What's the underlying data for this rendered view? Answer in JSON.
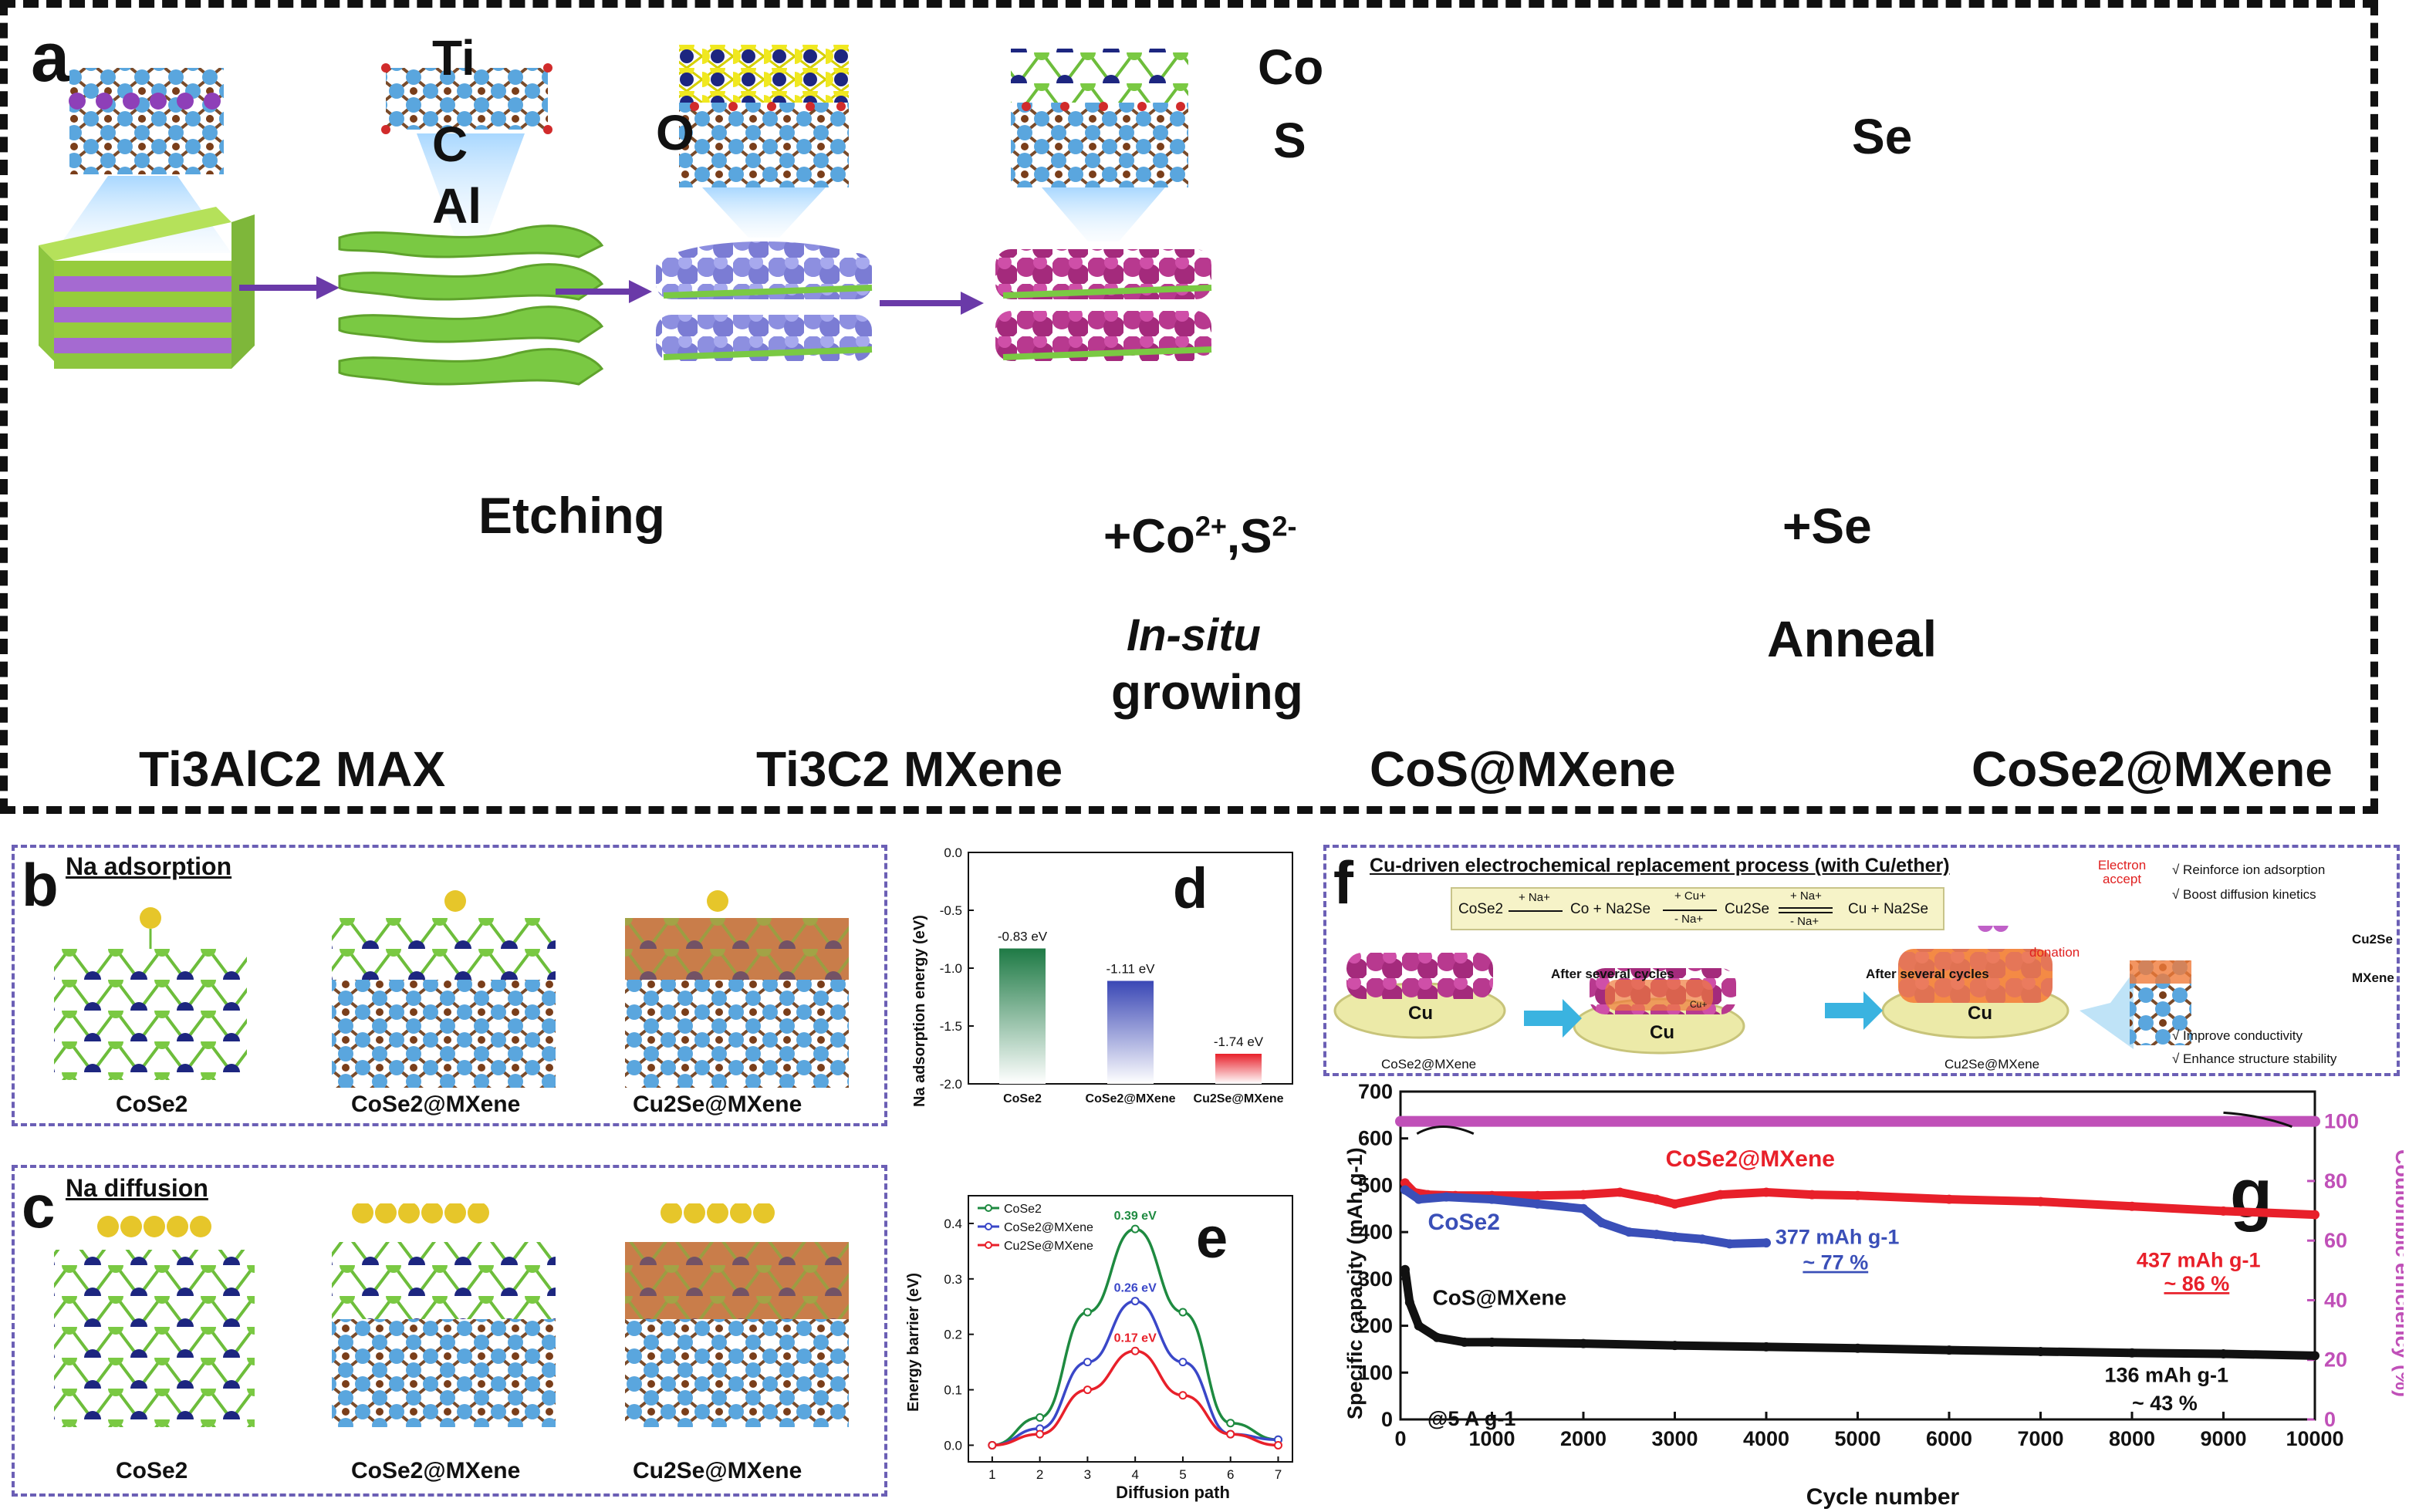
{
  "panel_a": {
    "letter": "a",
    "atom_labels": {
      "ti": "Ti",
      "c": "C",
      "al": "Al",
      "o": "O",
      "co": "Co",
      "s": "S",
      "se": "Se"
    },
    "arrows": {
      "etching": "Etching",
      "co_s_prefix": "+Co",
      "co_s_sup1": "2+",
      "co_s_mid": ",S",
      "co_s_sup2": "2-",
      "in_situ": "In-situ",
      "growing": "growing",
      "plus_se": "+Se",
      "anneal": "Anneal"
    },
    "stages": [
      "Ti3AlC2 MAX",
      "Ti3C2 MXene",
      "CoS@MXene",
      "CoSe2@MXene"
    ]
  },
  "panel_b": {
    "letter": "b",
    "title": "Na adsorption",
    "captions": [
      "CoSe2",
      "CoSe2@MXene",
      "Cu2Se@MXene"
    ]
  },
  "panel_c": {
    "letter": "c",
    "title": "Na diffusion",
    "captions": [
      "CoSe2",
      "CoSe2@MXene",
      "Cu2Se@MXene"
    ]
  },
  "panel_f": {
    "letter": "f",
    "title": "Cu-driven electrochemical replacement process (with Cu/ether)",
    "reaction": {
      "r1": "CoSe2",
      "r1_arrow": "+ Na+",
      "r2": "Co + Na2Se",
      "r2_arrow_top": "+ Cu+",
      "r2_arrow_bot": "- Na+",
      "r3": "Cu2Se",
      "r3_arrow_top": "+ Na+",
      "r3_arrow_bot": "- Na+",
      "r4": "Cu + Na2Se"
    },
    "after_several_cycles": "After several cycles",
    "cu": "Cu",
    "cu_plus": "Cu+",
    "left_caption": "CoSe2@MXene",
    "right_caption": "Cu2Se@MXene",
    "electron_accept": "Electron accept",
    "donation": "donation",
    "benefits": [
      "√ Reinforce ion adsorption",
      "√ Boost diffusion kinetics",
      "√ Improve conductivity",
      "√ Enhance structure stability"
    ],
    "side_labels": [
      "Cu2Se",
      "MXene"
    ]
  },
  "chart_data": [
    {
      "id": "d",
      "letter": "d",
      "type": "bar",
      "title": "",
      "ylabel": "Na adsorption energy (eV)",
      "categories": [
        "CoSe2",
        "CoSe2@MXene",
        "Cu2Se@MXene"
      ],
      "values": [
        -0.83,
        -1.11,
        -1.74
      ],
      "value_labels": [
        "-0.83 eV",
        "-1.11 eV",
        "-1.74 eV"
      ],
      "ylim": [
        0,
        -2.0
      ],
      "yticks": [
        0.0,
        -0.5,
        -1.0,
        -1.5,
        -2.0
      ],
      "ytick_labels": [
        "0.0",
        "-0.5",
        "-1.0",
        "-1.5",
        "-2.0"
      ],
      "colors": [
        "#1e7a45",
        "#3a47b5",
        "#e8202a"
      ]
    },
    {
      "id": "e",
      "letter": "e",
      "type": "line",
      "xlabel": "Diffusion path",
      "ylabel": "Energy barrier (eV)",
      "x": [
        1,
        2,
        3,
        4,
        5,
        6,
        7
      ],
      "xlim": [
        0.5,
        7.3
      ],
      "ylim": [
        -0.03,
        0.45
      ],
      "xticks": [
        1,
        2,
        3,
        4,
        5,
        6,
        7
      ],
      "yticks": [
        0.0,
        0.1,
        0.2,
        0.3,
        0.4
      ],
      "ytick_labels": [
        "0.0",
        "0.1",
        "0.2",
        "0.3",
        "0.4"
      ],
      "series": [
        {
          "name": "CoSe2",
          "values": [
            0.0,
            0.05,
            0.24,
            0.39,
            0.24,
            0.04,
            0.01
          ],
          "color": "#1e8a40",
          "peak_label": "0.39 eV"
        },
        {
          "name": "CoSe2@MXene",
          "values": [
            0.0,
            0.03,
            0.15,
            0.26,
            0.15,
            0.02,
            0.01
          ],
          "color": "#3a47c8",
          "peak_label": "0.26 eV"
        },
        {
          "name": "Cu2Se@MXene",
          "values": [
            0.0,
            0.02,
            0.1,
            0.17,
            0.09,
            0.02,
            0.0
          ],
          "color": "#e8202a",
          "peak_label": "0.17 eV"
        }
      ]
    },
    {
      "id": "g",
      "letter": "g",
      "type": "scatter",
      "xlabel": "Cycle number",
      "ylabel": "Specific capacity (mAh g-1)",
      "y2label": "Coulombic efficiency (%)",
      "xlim": [
        0,
        10000
      ],
      "ylim": [
        0,
        700
      ],
      "y2lim": [
        0,
        110
      ],
      "xticks": [
        0,
        1000,
        2000,
        3000,
        4000,
        5000,
        6000,
        7000,
        8000,
        9000,
        10000
      ],
      "yticks": [
        0,
        100,
        200,
        300,
        400,
        500,
        600,
        700
      ],
      "y2ticks": [
        0,
        20,
        40,
        60,
        80,
        100
      ],
      "condition": "@5 A g-1",
      "series": [
        {
          "name": "CoSe2@MXene",
          "color": "#e8202a",
          "x": [
            50,
            150,
            300,
            600,
            1000,
            1500,
            2000,
            2400,
            2800,
            3000,
            3500,
            4000,
            4500,
            5000,
            6000,
            7000,
            8000,
            9000,
            10000
          ],
          "values": [
            505,
            485,
            480,
            478,
            478,
            478,
            480,
            485,
            470,
            460,
            480,
            485,
            480,
            478,
            470,
            465,
            455,
            445,
            437
          ],
          "annotation": "437 mAh g-1",
          "retention": "~ 86 %"
        },
        {
          "name": "CoSe2",
          "color": "#3a4fb8",
          "x": [
            50,
            200,
            500,
            1000,
            1500,
            2000,
            2200,
            2500,
            2800,
            3000,
            3300,
            3600,
            4000
          ],
          "values": [
            490,
            470,
            475,
            470,
            460,
            450,
            420,
            400,
            395,
            390,
            385,
            375,
            377
          ],
          "annotation": "377 mAh g-1",
          "retention": "~ 77 %"
        },
        {
          "name": "CoS@MXene",
          "color": "#111111",
          "x": [
            50,
            100,
            200,
            400,
            700,
            1000,
            2000,
            3000,
            4000,
            5000,
            6000,
            7000,
            8000,
            9000,
            10000
          ],
          "values": [
            320,
            250,
            200,
            175,
            165,
            165,
            162,
            158,
            155,
            152,
            148,
            145,
            142,
            140,
            136
          ],
          "annotation": "136 mAh g-1",
          "retention": "~ 43 %"
        },
        {
          "name": "Coulombic efficiency",
          "axis": "right",
          "color": "#c050b8",
          "x": [
            0,
            1000,
            2000,
            3000,
            4000,
            5000,
            6000,
            7000,
            8000,
            9000,
            10000
          ],
          "values": [
            100,
            100,
            100,
            100,
            100,
            100,
            100,
            100,
            100,
            100,
            100
          ]
        }
      ]
    }
  ]
}
